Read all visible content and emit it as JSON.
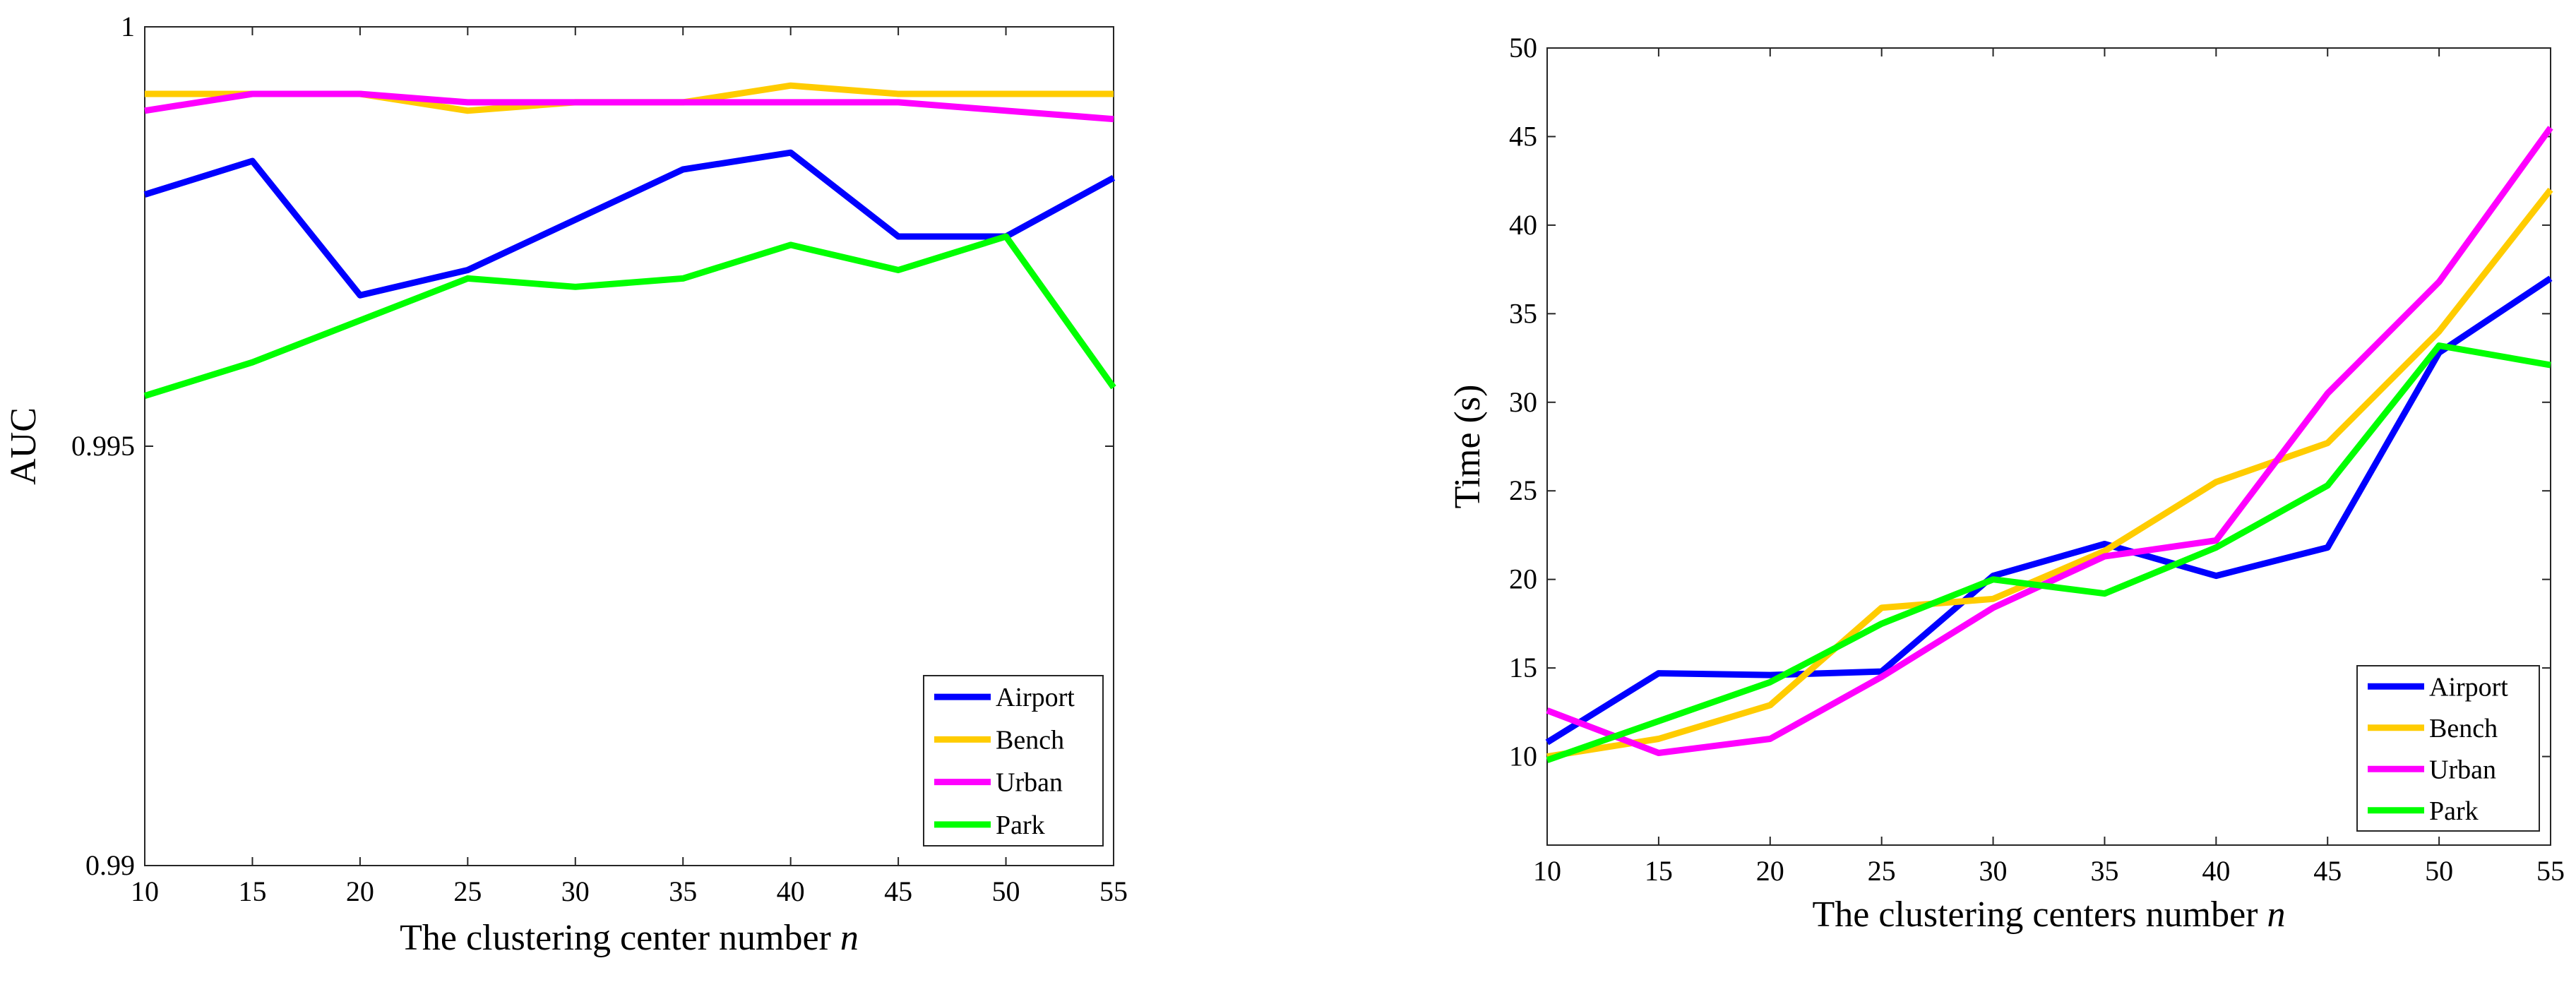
{
  "chart_data": [
    {
      "type": "line",
      "x": [
        10,
        15,
        20,
        25,
        30,
        35,
        40,
        45,
        50,
        55
      ],
      "xlim": [
        10,
        55
      ],
      "ylim": [
        0.99,
        1.0
      ],
      "xticks": [
        "10",
        "15",
        "20",
        "25",
        "30",
        "35",
        "40",
        "45",
        "50",
        "55"
      ],
      "yticks": [
        {
          "value": 0.99,
          "label": "0.99"
        },
        {
          "value": 0.995,
          "label": "0.995"
        },
        {
          "value": 1.0,
          "label": "1"
        }
      ],
      "xlabel": "The clustering center number",
      "xlabel_var": "n",
      "ylabel": "AUC",
      "legend_position": "bottom-right",
      "grid": false,
      "series": [
        {
          "name": "Airport",
          "color": "#0000ff",
          "values": [
            0.998,
            0.9984,
            0.9968,
            0.9971,
            0.9977,
            0.9983,
            0.9985,
            0.9975,
            0.9975,
            0.9982
          ]
        },
        {
          "name": "Bench",
          "color": "#ffcc00",
          "values": [
            0.9992,
            0.9992,
            0.9992,
            0.999,
            0.9991,
            0.9991,
            0.9993,
            0.9992,
            0.9992,
            0.9992
          ]
        },
        {
          "name": "Urban",
          "color": "#ff00ff",
          "values": [
            0.999,
            0.9992,
            0.9992,
            0.9991,
            0.9991,
            0.9991,
            0.9991,
            0.9991,
            0.999,
            0.9989
          ]
        },
        {
          "name": "Park",
          "color": "#00ff00",
          "values": [
            0.9956,
            0.996,
            0.9965,
            0.997,
            0.9969,
            0.997,
            0.9974,
            0.9971,
            0.9975,
            0.9957
          ]
        }
      ]
    },
    {
      "type": "line",
      "x": [
        10,
        15,
        20,
        25,
        30,
        35,
        40,
        45,
        50,
        55
      ],
      "xlim": [
        10,
        55
      ],
      "ylim": [
        5,
        50
      ],
      "xticks": [
        "10",
        "15",
        "20",
        "25",
        "30",
        "35",
        "40",
        "45",
        "50",
        "55"
      ],
      "yticks": [
        {
          "value": 10,
          "label": "10"
        },
        {
          "value": 15,
          "label": "15"
        },
        {
          "value": 20,
          "label": "20"
        },
        {
          "value": 25,
          "label": "25"
        },
        {
          "value": 30,
          "label": "30"
        },
        {
          "value": 35,
          "label": "35"
        },
        {
          "value": 40,
          "label": "40"
        },
        {
          "value": 45,
          "label": "45"
        },
        {
          "value": 50,
          "label": "50"
        }
      ],
      "xlabel": "The clustering centers number",
      "xlabel_var": "n",
      "ylabel": "Time (s)",
      "legend_position": "bottom-right",
      "grid": false,
      "series": [
        {
          "name": "Airport",
          "color": "#0000ff",
          "values": [
            10.8,
            14.7,
            14.6,
            14.8,
            20.2,
            22.0,
            20.2,
            21.8,
            32.8,
            37.0
          ]
        },
        {
          "name": "Bench",
          "color": "#ffcc00",
          "values": [
            10.0,
            11.0,
            12.9,
            18.4,
            18.9,
            21.6,
            25.5,
            27.7,
            34.0,
            42.0
          ]
        },
        {
          "name": "Urban",
          "color": "#ff00ff",
          "values": [
            12.6,
            10.2,
            11.0,
            14.5,
            18.4,
            21.3,
            22.2,
            30.5,
            36.8,
            45.5
          ]
        },
        {
          "name": "Park",
          "color": "#00ff00",
          "values": [
            9.8,
            12.0,
            14.2,
            17.5,
            20.0,
            19.2,
            21.8,
            25.3,
            33.2,
            32.1
          ]
        }
      ]
    }
  ]
}
